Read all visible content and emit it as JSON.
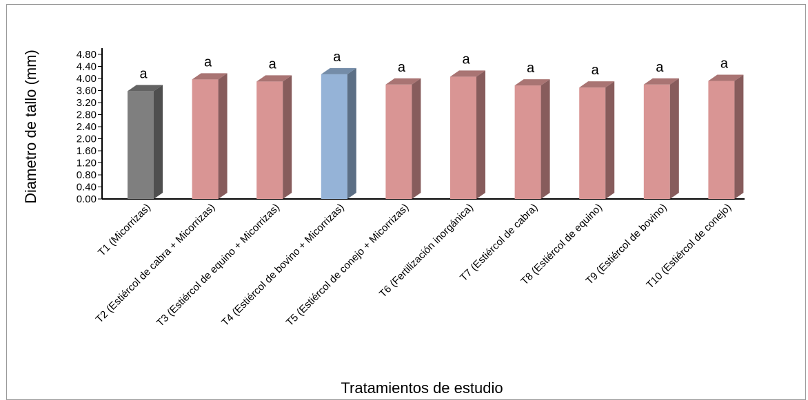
{
  "chart_data": {
    "type": "bar",
    "style": "3d-column",
    "title": "",
    "xlabel": "Tratamientos de estudio",
    "ylabel": "Diametro de tallo (mm)",
    "ylim": [
      0,
      4.8
    ],
    "yticks": [
      "0.00",
      "0.40",
      "0.80",
      "1.20",
      "1.60",
      "2.00",
      "2.40",
      "2.80",
      "3.20",
      "3.60",
      "4.00",
      "4.40",
      "4.80"
    ],
    "grid": false,
    "legend": "none",
    "categories": [
      "T1 (Micorrizas)",
      "T2 (Estiércol de cabra + Micorrizas)",
      "T3 (Estiércol de equino + Micorrizas)",
      "T4 (Estiércol de bovino + Micorrizas)",
      "T5 (Estiércol de conejo + Micorrizas)",
      "T6 (Fertilización inorgánica)",
      "T7 (Estiércol de cabra)",
      "T8 (Estiércol de equino)",
      "T9 (Estiércol de bovino)",
      "T10 (Estiércol de conejo)"
    ],
    "values": [
      3.58,
      3.97,
      3.9,
      4.14,
      3.8,
      4.06,
      3.77,
      3.7,
      3.8,
      3.92
    ],
    "labels": [
      "a",
      "a",
      "a",
      "a",
      "a",
      "a",
      "a",
      "a",
      "a",
      "a"
    ],
    "colors": [
      "#7f7f7f",
      "#d99594",
      "#d99594",
      "#95b3d7",
      "#d99594",
      "#d99594",
      "#d99594",
      "#d99594",
      "#d99594",
      "#d99594"
    ]
  }
}
